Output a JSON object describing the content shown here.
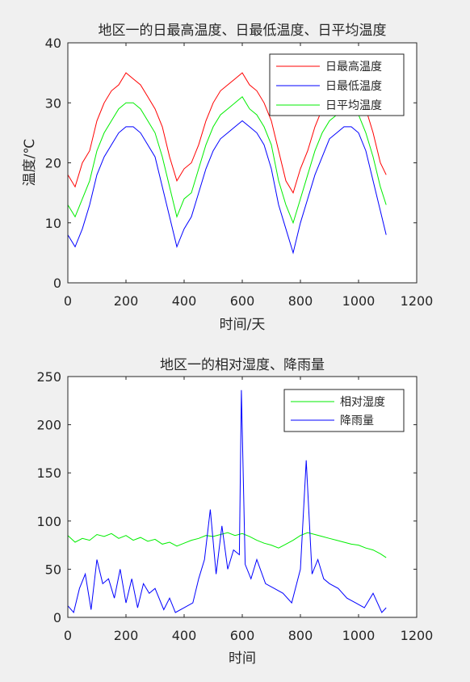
{
  "figure": {
    "background": "#f0f0f0"
  },
  "chart_data": [
    {
      "type": "line",
      "title": "地区一的日最高温度、日最低温度、日平均温度",
      "xlabel": "时间/天",
      "ylabel": "温度/℃",
      "xlim": [
        0,
        1200
      ],
      "ylim": [
        0,
        40
      ],
      "xticks": [
        "0",
        "200",
        "400",
        "600",
        "800",
        "1000",
        "1200"
      ],
      "yticks": [
        "0",
        "10",
        "20",
        "30",
        "40"
      ],
      "legend": "top-right",
      "grid": false,
      "x": [
        0,
        25,
        50,
        75,
        100,
        125,
        150,
        175,
        200,
        225,
        250,
        275,
        300,
        325,
        350,
        375,
        400,
        425,
        450,
        475,
        500,
        525,
        550,
        575,
        600,
        625,
        650,
        675,
        700,
        725,
        750,
        775,
        800,
        825,
        850,
        875,
        900,
        925,
        950,
        975,
        1000,
        1025,
        1050,
        1075,
        1095
      ],
      "series": [
        {
          "name": "日最高温度",
          "color": "#ff0000",
          "values": [
            18,
            16,
            20,
            22,
            27,
            30,
            32,
            33,
            35,
            34,
            33,
            31,
            29,
            26,
            21,
            17,
            19,
            20,
            23,
            27,
            30,
            32,
            33,
            34,
            35,
            33,
            32,
            30,
            27,
            22,
            17,
            15,
            19,
            22,
            26,
            29,
            31,
            32,
            33,
            33,
            31,
            29,
            25,
            20,
            18
          ]
        },
        {
          "name": "日最低温度",
          "color": "#0000ff",
          "values": [
            8,
            6,
            9,
            13,
            18,
            21,
            23,
            25,
            26,
            26,
            25,
            23,
            21,
            16,
            11,
            6,
            9,
            11,
            15,
            19,
            22,
            24,
            25,
            26,
            27,
            26,
            25,
            23,
            19,
            13,
            9,
            5,
            10,
            14,
            18,
            21,
            24,
            25,
            26,
            26,
            25,
            22,
            17,
            12,
            8
          ]
        },
        {
          "name": "日平均温度",
          "color": "#00ee00",
          "values": [
            13,
            11,
            14,
            17,
            22,
            25,
            27,
            29,
            30,
            30,
            29,
            27,
            25,
            21,
            16,
            11,
            14,
            15,
            19,
            23,
            26,
            28,
            29,
            30,
            31,
            29,
            28,
            26,
            23,
            17,
            13,
            10,
            14,
            18,
            22,
            25,
            27,
            28,
            29,
            29,
            28,
            25,
            21,
            16,
            13
          ]
        }
      ]
    },
    {
      "type": "line",
      "title": "地区一的相对湿度、降雨量",
      "xlabel": "时间",
      "ylabel": "",
      "xlim": [
        0,
        1200
      ],
      "ylim": [
        0,
        250
      ],
      "xticks": [
        "0",
        "200",
        "400",
        "600",
        "800",
        "1000",
        "1200"
      ],
      "yticks": [
        "0",
        "50",
        "100",
        "150",
        "200",
        "250"
      ],
      "legend": "top-right",
      "grid": false,
      "series": [
        {
          "name": "相对湿度",
          "color": "#00ee00",
          "x": [
            0,
            25,
            50,
            75,
            100,
            125,
            150,
            175,
            200,
            225,
            250,
            275,
            300,
            325,
            350,
            375,
            400,
            425,
            450,
            475,
            500,
            525,
            550,
            575,
            600,
            625,
            650,
            675,
            700,
            725,
            750,
            775,
            800,
            825,
            850,
            875,
            900,
            925,
            950,
            975,
            1000,
            1025,
            1050,
            1075,
            1095
          ],
          "values": [
            85,
            78,
            82,
            80,
            86,
            84,
            87,
            82,
            85,
            80,
            83,
            79,
            81,
            76,
            78,
            74,
            77,
            80,
            82,
            85,
            84,
            86,
            88,
            85,
            87,
            84,
            80,
            77,
            75,
            72,
            76,
            80,
            85,
            88,
            86,
            84,
            82,
            80,
            78,
            76,
            75,
            72,
            70,
            66,
            62
          ]
        },
        {
          "name": "降雨量",
          "color": "#0000ff",
          "x": [
            0,
            20,
            40,
            60,
            80,
            100,
            120,
            140,
            160,
            180,
            200,
            220,
            240,
            260,
            280,
            300,
            330,
            350,
            370,
            400,
            430,
            450,
            470,
            490,
            510,
            530,
            550,
            570,
            590,
            597,
            610,
            630,
            650,
            680,
            710,
            740,
            770,
            800,
            820,
            840,
            860,
            880,
            900,
            930,
            960,
            990,
            1020,
            1050,
            1080,
            1095
          ],
          "values": [
            12,
            5,
            30,
            45,
            8,
            60,
            35,
            40,
            20,
            50,
            15,
            40,
            10,
            35,
            25,
            30,
            8,
            20,
            5,
            10,
            15,
            40,
            60,
            112,
            45,
            95,
            50,
            70,
            65,
            236,
            55,
            40,
            60,
            35,
            30,
            25,
            15,
            50,
            163,
            45,
            60,
            40,
            35,
            30,
            20,
            15,
            10,
            25,
            5,
            10
          ]
        }
      ]
    }
  ]
}
